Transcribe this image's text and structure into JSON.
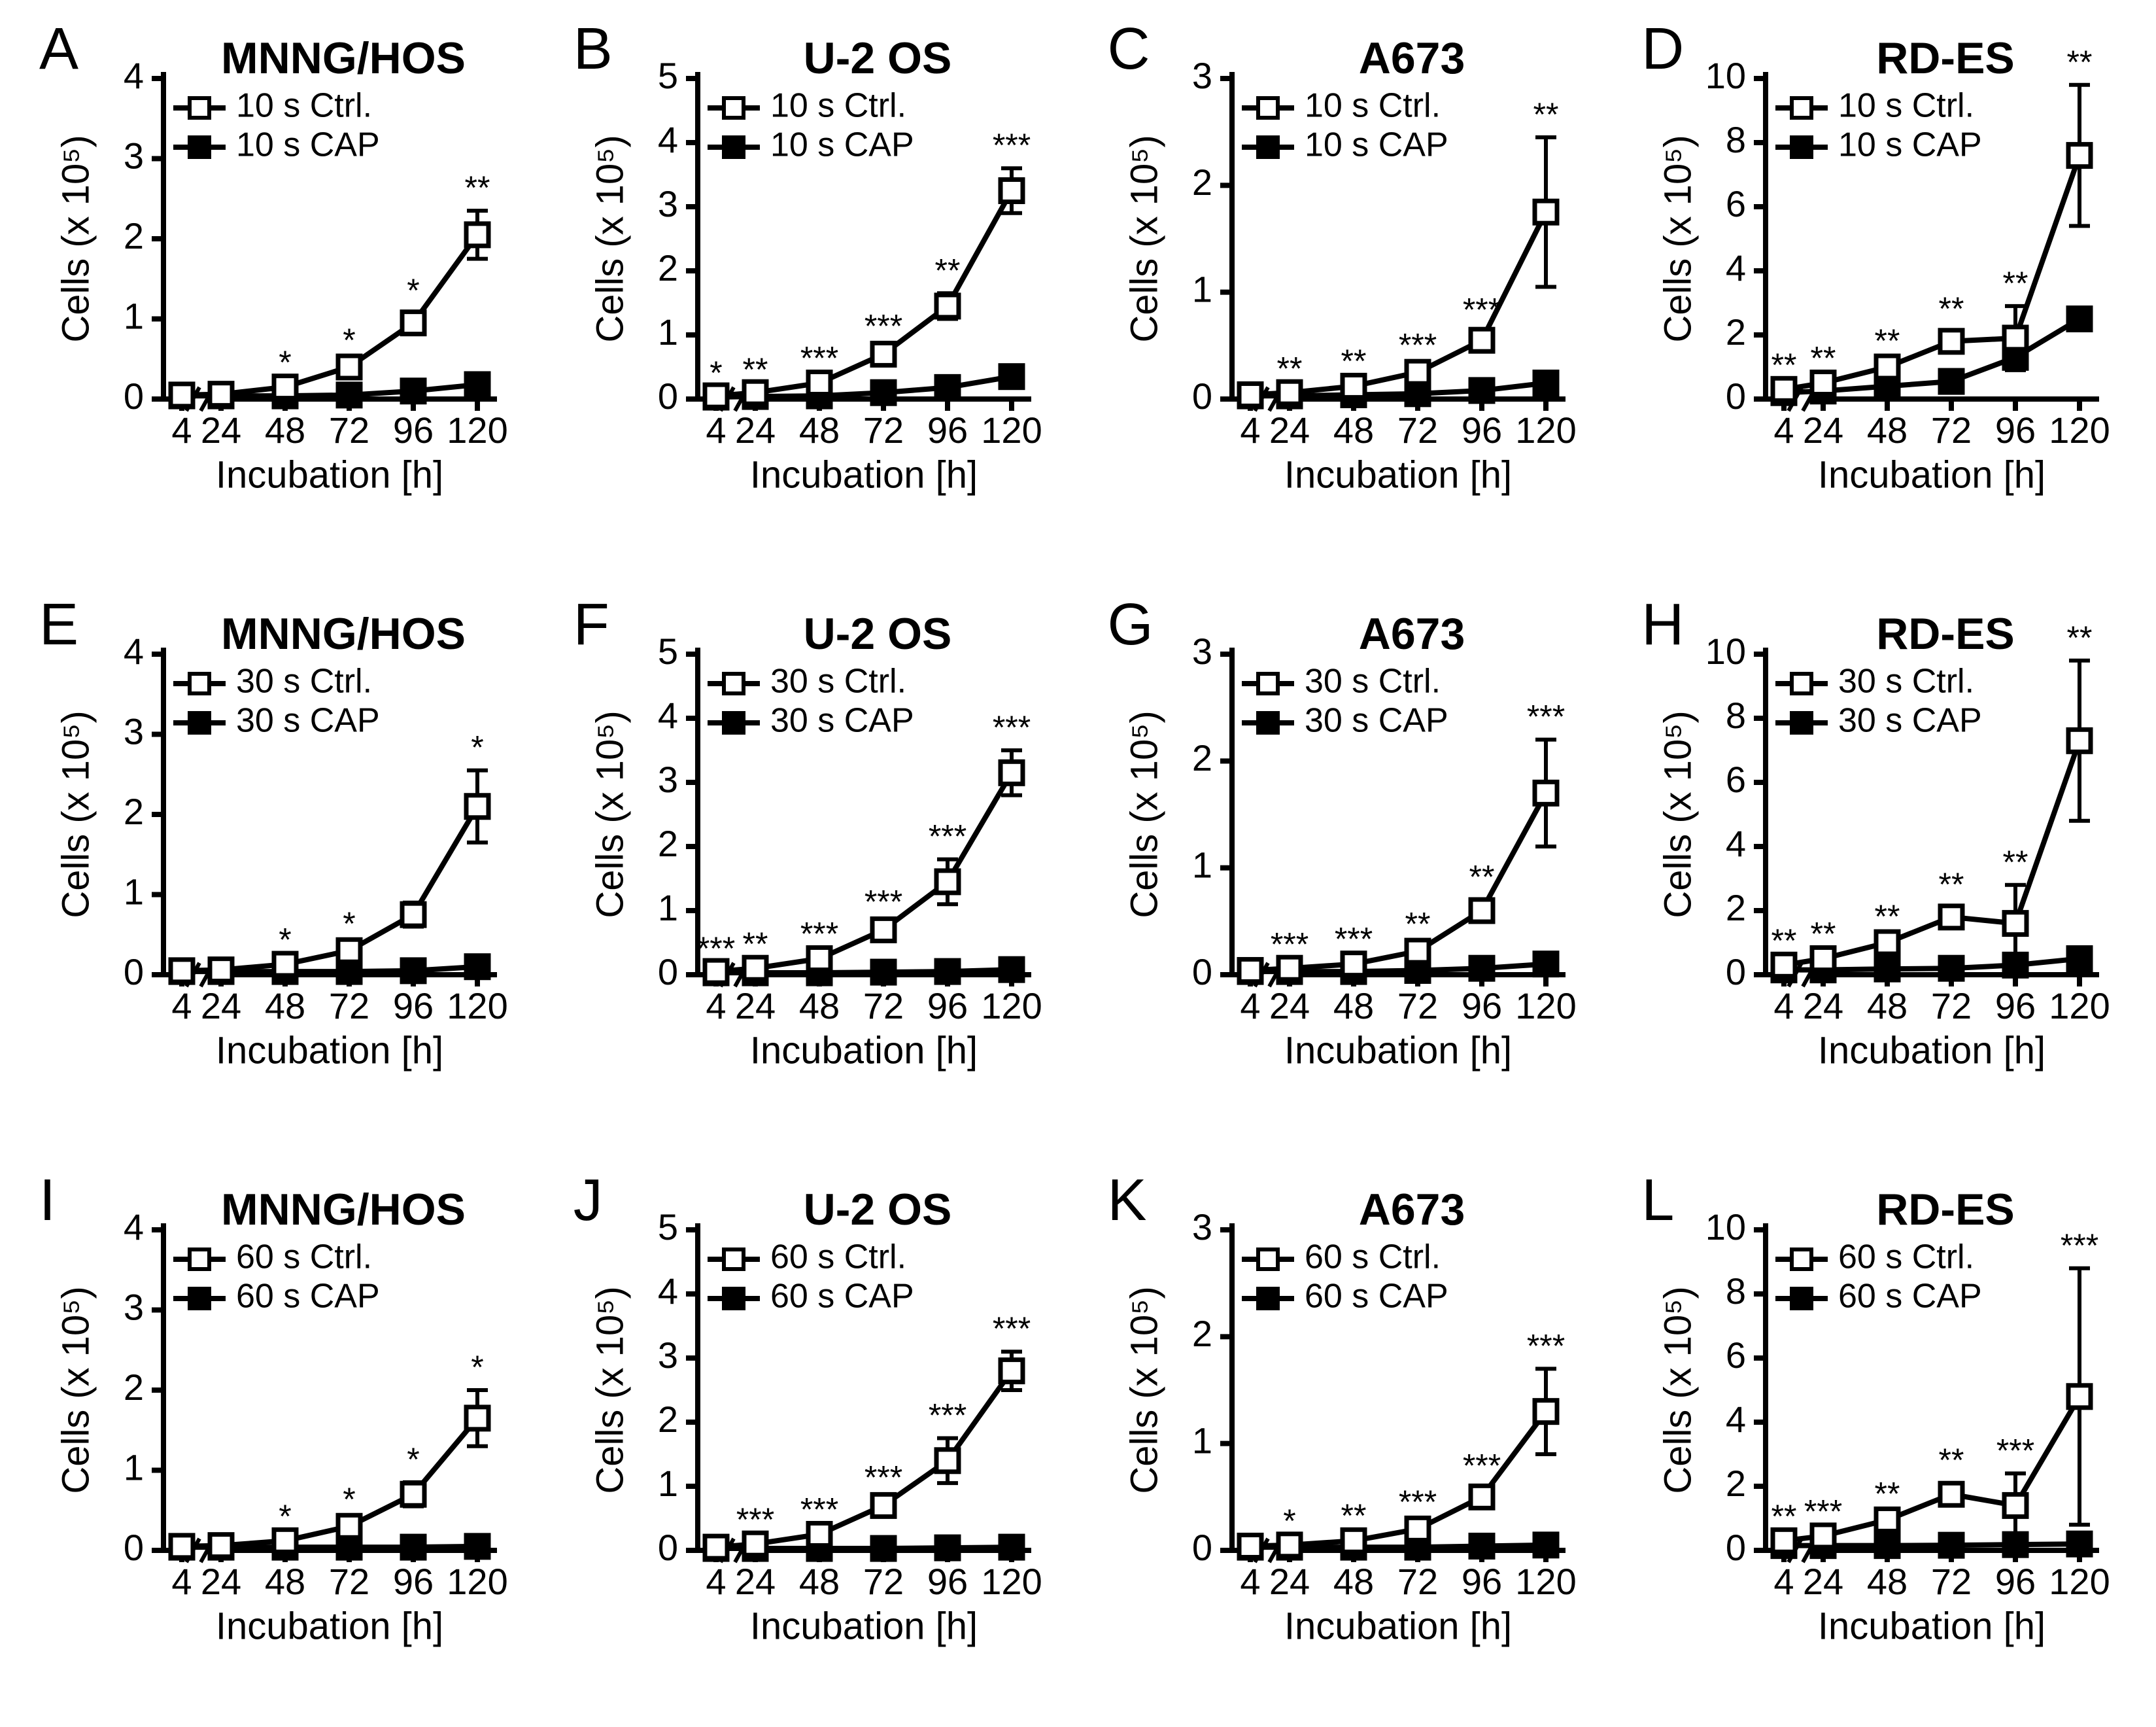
{
  "figure": {
    "background_color": "#ffffff",
    "axis_color": "#000000",
    "line_color": "#000000",
    "marker_stroke": "#000000",
    "ctrl_fill": "#ffffff",
    "cap_fill": "#000000",
    "text_color": "#000000",
    "font_family": "Arial, Helvetica, sans-serif",
    "panel_letter_fontsize": 90,
    "title_fontsize": 68,
    "axis_label_fontsize": 58,
    "tick_fontsize": 56,
    "legend_fontsize": 52,
    "sig_fontsize": 50,
    "line_width": 8,
    "axis_line_width": 8,
    "tick_len": 18,
    "marker_size": 34,
    "legend_marker_size": 30,
    "legend_line_len": 80,
    "cap_width": 16,
    "xlabel": "Incubation [h]",
    "ylabel": "Cells (x 10⁵)",
    "x_ticks": [
      4,
      24,
      48,
      72,
      96,
      120
    ],
    "x_tick_labels": [
      "4",
      "24",
      "48",
      "72",
      "96",
      "120"
    ],
    "x_min": 4,
    "x_max": 120,
    "x_axis_break": true,
    "rows": [
      {
        "treat_time": "10 s",
        "panels": [
          {
            "letter": "A",
            "title": "MNNG/HOS",
            "y_max": 4,
            "y_tick_step": 1,
            "ctrl": {
              "y": [
                0.05,
                0.06,
                0.15,
                0.4,
                0.95,
                2.05
              ],
              "err": [
                0,
                0,
                0.02,
                0.05,
                0.12,
                0.3
              ]
            },
            "cap": {
              "y": [
                0.04,
                0.04,
                0.04,
                0.05,
                0.1,
                0.18
              ],
              "err": [
                0,
                0,
                0,
                0,
                0.02,
                0.04
              ]
            },
            "sig": [
              "",
              "",
              "*",
              "*",
              "*",
              "**"
            ]
          },
          {
            "letter": "B",
            "title": "U-2 OS",
            "y_max": 5,
            "y_tick_step": 1,
            "ctrl": {
              "y": [
                0.05,
                0.1,
                0.25,
                0.7,
                1.45,
                3.25
              ],
              "err": [
                0,
                0,
                0.03,
                0.08,
                0.2,
                0.35
              ]
            },
            "cap": {
              "y": [
                0.03,
                0.04,
                0.05,
                0.1,
                0.18,
                0.35
              ],
              "err": [
                0,
                0,
                0,
                0.02,
                0.04,
                0.06
              ]
            },
            "sig": [
              "*",
              "**",
              "***",
              "***",
              "**",
              "***"
            ]
          },
          {
            "letter": "C",
            "title": "A673",
            "y_max": 3,
            "y_tick_step": 1,
            "ctrl": {
              "y": [
                0.04,
                0.06,
                0.12,
                0.25,
                0.55,
                1.75
              ],
              "err": [
                0,
                0.01,
                0.02,
                0.04,
                0.07,
                0.7
              ]
            },
            "cap": {
              "y": [
                0.03,
                0.03,
                0.04,
                0.05,
                0.08,
                0.15
              ],
              "err": [
                0,
                0,
                0,
                0,
                0.02,
                0.03
              ]
            },
            "sig": [
              "",
              "**",
              "**",
              "***",
              "***",
              "**"
            ]
          },
          {
            "letter": "D",
            "title": "RD-ES",
            "y_max": 10,
            "y_tick_step": 2,
            "ctrl": {
              "y": [
                0.3,
                0.5,
                1.0,
                1.8,
                1.9,
                7.6
              ],
              "err": [
                0.05,
                0.06,
                0.1,
                0.3,
                1.0,
                2.2
              ]
            },
            "cap": {
              "y": [
                0.2,
                0.25,
                0.4,
                0.55,
                1.3,
                2.5
              ],
              "err": [
                0,
                0,
                0.05,
                0.08,
                0.15,
                0.25
              ]
            },
            "sig": [
              "**",
              "**",
              "**",
              "**",
              "**",
              "**"
            ]
          }
        ]
      },
      {
        "treat_time": "30 s",
        "panels": [
          {
            "letter": "E",
            "title": "MNNG/HOS",
            "y_max": 4,
            "y_tick_step": 1,
            "ctrl": {
              "y": [
                0.05,
                0.06,
                0.13,
                0.3,
                0.75,
                2.1
              ],
              "err": [
                0,
                0,
                0.02,
                0.05,
                0.15,
                0.45
              ]
            },
            "cap": {
              "y": [
                0.04,
                0.04,
                0.04,
                0.04,
                0.05,
                0.1
              ],
              "err": [
                0,
                0,
                0,
                0,
                0,
                0.02
              ]
            },
            "sig": [
              "",
              "",
              "*",
              "*",
              "",
              "*"
            ]
          },
          {
            "letter": "F",
            "title": "U-2 OS",
            "y_max": 5,
            "y_tick_step": 1,
            "ctrl": {
              "y": [
                0.05,
                0.1,
                0.25,
                0.7,
                1.45,
                3.15
              ],
              "err": [
                0,
                0.02,
                0.03,
                0.08,
                0.35,
                0.35
              ]
            },
            "cap": {
              "y": [
                0.03,
                0.03,
                0.03,
                0.04,
                0.05,
                0.08
              ],
              "err": [
                0,
                0,
                0,
                0,
                0,
                0.02
              ]
            },
            "sig": [
              "***",
              "**",
              "***",
              "***",
              "***",
              "***"
            ]
          },
          {
            "letter": "G",
            "title": "A673",
            "y_max": 3,
            "y_tick_step": 1,
            "ctrl": {
              "y": [
                0.04,
                0.06,
                0.1,
                0.22,
                0.6,
                1.7
              ],
              "err": [
                0,
                0.01,
                0.02,
                0.04,
                0.1,
                0.5
              ]
            },
            "cap": {
              "y": [
                0.03,
                0.03,
                0.03,
                0.04,
                0.06,
                0.1
              ],
              "err": [
                0,
                0,
                0,
                0,
                0.01,
                0.02
              ]
            },
            "sig": [
              "",
              "***",
              "***",
              "**",
              "**",
              "***"
            ]
          },
          {
            "letter": "H",
            "title": "RD-ES",
            "y_max": 10,
            "y_tick_step": 2,
            "ctrl": {
              "y": [
                0.3,
                0.5,
                1.0,
                1.8,
                1.6,
                7.3
              ],
              "err": [
                0.05,
                0.06,
                0.1,
                0.3,
                1.2,
                2.5
              ]
            },
            "cap": {
              "y": [
                0.15,
                0.15,
                0.18,
                0.2,
                0.3,
                0.5
              ],
              "err": [
                0,
                0,
                0,
                0.03,
                0.05,
                0.2
              ]
            },
            "sig": [
              "**",
              "**",
              "**",
              "**",
              "**",
              "**"
            ]
          }
        ]
      },
      {
        "treat_time": "60 s",
        "panels": [
          {
            "letter": "I",
            "title": "MNNG/HOS",
            "y_max": 4,
            "y_tick_step": 1,
            "ctrl": {
              "y": [
                0.05,
                0.06,
                0.12,
                0.3,
                0.7,
                1.65
              ],
              "err": [
                0,
                0,
                0.02,
                0.05,
                0.15,
                0.35
              ]
            },
            "cap": {
              "y": [
                0.04,
                0.04,
                0.04,
                0.04,
                0.04,
                0.05
              ],
              "err": [
                0,
                0,
                0,
                0,
                0,
                0
              ]
            },
            "sig": [
              "",
              "",
              "*",
              "*",
              "*",
              "*"
            ]
          },
          {
            "letter": "J",
            "title": "U-2 OS",
            "y_max": 5,
            "y_tick_step": 1,
            "ctrl": {
              "y": [
                0.05,
                0.1,
                0.25,
                0.7,
                1.4,
                2.8
              ],
              "err": [
                0,
                0.02,
                0.03,
                0.08,
                0.35,
                0.3
              ]
            },
            "cap": {
              "y": [
                0.03,
                0.03,
                0.03,
                0.03,
                0.04,
                0.05
              ],
              "err": [
                0,
                0,
                0,
                0,
                0,
                0
              ]
            },
            "sig": [
              "",
              "***",
              "***",
              "***",
              "***",
              "***"
            ]
          },
          {
            "letter": "K",
            "title": "A673",
            "y_max": 3,
            "y_tick_step": 1,
            "ctrl": {
              "y": [
                0.04,
                0.05,
                0.09,
                0.2,
                0.5,
                1.3
              ],
              "err": [
                0,
                0.01,
                0.02,
                0.04,
                0.08,
                0.4
              ]
            },
            "cap": {
              "y": [
                0.03,
                0.03,
                0.03,
                0.03,
                0.04,
                0.05
              ],
              "err": [
                0,
                0,
                0,
                0,
                0,
                0
              ]
            },
            "sig": [
              "",
              "*",
              "**",
              "***",
              "***",
              "***"
            ]
          },
          {
            "letter": "L",
            "title": "RD-ES",
            "y_max": 10,
            "y_tick_step": 2,
            "ctrl": {
              "y": [
                0.3,
                0.45,
                0.95,
                1.75,
                1.4,
                4.8
              ],
              "err": [
                0.05,
                0.05,
                0.1,
                0.35,
                1.0,
                4.0
              ]
            },
            "cap": {
              "y": [
                0.15,
                0.15,
                0.15,
                0.16,
                0.18,
                0.2
              ],
              "err": [
                0,
                0,
                0,
                0,
                0,
                0
              ]
            },
            "sig": [
              "**",
              "***",
              "**",
              "**",
              "***",
              "***"
            ]
          }
        ]
      }
    ]
  }
}
